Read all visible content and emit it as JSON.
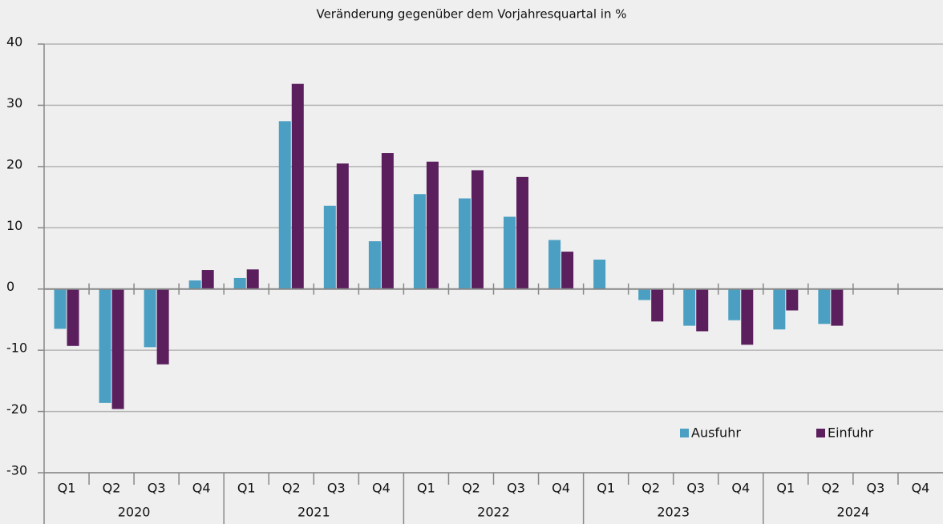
{
  "chart_data": {
    "type": "bar",
    "title": "Veränderung gegenüber dem Vorjahresquartal in %",
    "categories": [
      "Q1",
      "Q2",
      "Q3",
      "Q4",
      "Q1",
      "Q2",
      "Q3",
      "Q4",
      "Q1",
      "Q2",
      "Q3",
      "Q4",
      "Q1",
      "Q2",
      "Q3",
      "Q4",
      "Q1",
      "Q2",
      "Q3",
      "Q4"
    ],
    "year_groups": [
      "2020",
      "2021",
      "2022",
      "2023",
      "2024"
    ],
    "series": [
      {
        "name": "Ausfuhr",
        "color": "#4a9fc2",
        "values": [
          -6.5,
          -18.6,
          -9.5,
          1.4,
          1.8,
          27.4,
          13.6,
          7.8,
          15.5,
          14.8,
          11.8,
          8.0,
          4.8,
          -1.8,
          -6.0,
          -5.1,
          -6.6,
          -5.7,
          null,
          null
        ]
      },
      {
        "name": "Einfuhr",
        "color": "#5b1f5e",
        "values": [
          -9.3,
          -19.6,
          -12.3,
          3.1,
          3.2,
          33.5,
          20.5,
          22.2,
          20.8,
          19.4,
          18.3,
          6.1,
          null,
          -5.3,
          -6.9,
          -9.1,
          -3.5,
          -6.0,
          null,
          null
        ]
      }
    ],
    "ylim": [
      -30,
      40
    ],
    "yticks": [
      -30,
      -20,
      -10,
      0,
      10,
      20,
      30,
      40
    ],
    "grid": true,
    "legend": "lower right"
  }
}
